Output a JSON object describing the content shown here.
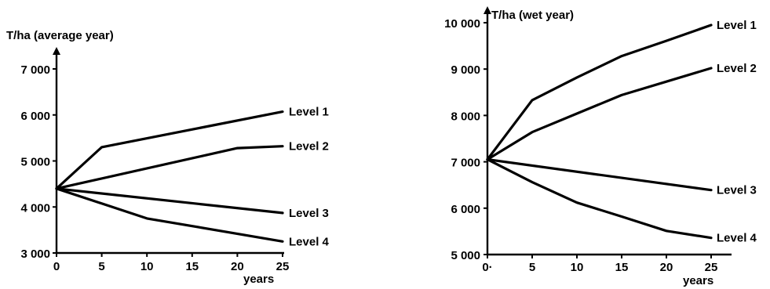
{
  "chart_data": [
    {
      "type": "line",
      "title": "T/ha  (average year)",
      "xlabel": "years",
      "ylabel": "T/ha",
      "x": [
        0,
        5,
        10,
        15,
        20,
        25
      ],
      "xticks": [
        "0",
        "5",
        "10",
        "15",
        "20",
        "25"
      ],
      "yticks": [
        "3 000",
        "4 000",
        "5 000",
        "6 000",
        "7 000"
      ],
      "ylim": [
        3000,
        7000
      ],
      "xlim": [
        0,
        25
      ],
      "series": [
        {
          "name": "Level 1",
          "x": [
            0,
            5,
            25
          ],
          "values": [
            4400,
            5300,
            6070
          ]
        },
        {
          "name": "Level 2",
          "x": [
            0,
            20,
            25
          ],
          "values": [
            4400,
            5280,
            5320
          ]
        },
        {
          "name": "Level 3",
          "x": [
            0,
            25
          ],
          "values": [
            4400,
            3870
          ]
        },
        {
          "name": "Level 4",
          "x": [
            0,
            10,
            25
          ],
          "values": [
            4400,
            3750,
            3250
          ]
        }
      ]
    },
    {
      "type": "line",
      "title": "T/ha  (wet year)",
      "xlabel": "years",
      "ylabel": "T/ha",
      "x": [
        0,
        5,
        10,
        15,
        20,
        25
      ],
      "xticks": [
        "0·",
        "5",
        "10",
        "15",
        "20",
        "25"
      ],
      "yticks": [
        "5 000",
        "6 000",
        "7 000",
        "8 000",
        "9 000",
        "10 000"
      ],
      "ylim": [
        5000,
        10000
      ],
      "xlim": [
        0,
        25
      ],
      "series": [
        {
          "name": "Level 1",
          "x": [
            0,
            5,
            10,
            15,
            20,
            25
          ],
          "values": [
            7050,
            8330,
            8820,
            9280,
            9610,
            9950
          ]
        },
        {
          "name": "Level 2",
          "x": [
            0,
            5,
            10,
            15,
            20,
            25
          ],
          "values": [
            7050,
            7640,
            8040,
            8440,
            8730,
            9020
          ]
        },
        {
          "name": "Level 3",
          "x": [
            0,
            25
          ],
          "values": [
            7050,
            6390
          ]
        },
        {
          "name": "Level 4",
          "x": [
            0,
            5,
            10,
            15,
            20,
            25
          ],
          "values": [
            7050,
            6560,
            6120,
            5820,
            5510,
            5360
          ]
        }
      ]
    }
  ]
}
